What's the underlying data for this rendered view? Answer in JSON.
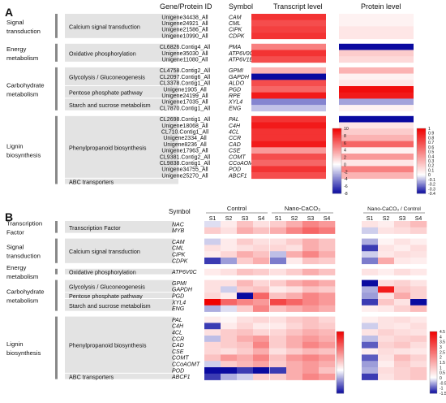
{
  "panel_a": {
    "letter": "A",
    "headers": {
      "gene": "Gene/Protein ID",
      "symbol": "Symbol",
      "transcript": "Transcript level",
      "protein": "Protein level"
    },
    "groups": [
      {
        "category": [
          "Signal",
          "transduction"
        ],
        "pathways": [
          {
            "name": "Calcium signal transduction",
            "rows": 4
          }
        ]
      },
      {
        "category": [
          "Energy",
          "metabolism"
        ],
        "pathways": [
          {
            "name": "Oxidative phosphorylation",
            "rows": 3
          }
        ]
      },
      {
        "category": [
          "Carbohydrate",
          "metabolism"
        ],
        "pathways": [
          {
            "name": "Glycolysis / Gluconeogenesis",
            "rows": 3
          },
          {
            "name": "Pentose phosphate pathway",
            "rows": 2
          },
          {
            "name": "Starch and sucrose metabolism",
            "rows": 2
          }
        ]
      },
      {
        "category": [
          "Lignin",
          "biosynthesis"
        ],
        "pathways": [
          {
            "name": "Phenylpropanoid biosynthesis",
            "rows": 10
          },
          {
            "name": "ABC transporters",
            "rows": 1
          }
        ]
      }
    ],
    "rows": [
      {
        "id": "Unigene34438_All",
        "symbol": "CAM"
      },
      {
        "id": "Unigene24921_All",
        "symbol": "CML"
      },
      {
        "id": "Unigene21586_All",
        "symbol": "CIPK"
      },
      {
        "id": "Unigene10990_All",
        "symbol": "CDPK"
      },
      {
        "id": "CL6826.Contig4_All",
        "symbol": "PMA"
      },
      {
        "id": "Unigene35030_All",
        "symbol": "ATP6V0C"
      },
      {
        "id": "Unigene11080_All",
        "symbol": "ATP6V1E"
      },
      {
        "id": "CL4758.Contig2_All",
        "symbol": "GPMI"
      },
      {
        "id": "CL2097.Contig6_All",
        "symbol": "GAPDH"
      },
      {
        "id": "CL3378.Contig1_All",
        "symbol": "ALDO"
      },
      {
        "id": "Unigene1905_All",
        "symbol": "PGD"
      },
      {
        "id": "Unigene24199_All",
        "symbol": "RPE"
      },
      {
        "id": "Unigene17035_All",
        "symbol": "XYL4"
      },
      {
        "id": "CL7870.Contig1_All",
        "symbol": "ENG"
      },
      {
        "id": "CL2698.Contig1_All",
        "symbol": "PAL"
      },
      {
        "id": "Unigene18068_All",
        "symbol": "C4H"
      },
      {
        "id": "CL710.Contig1_All",
        "symbol": "4CL"
      },
      {
        "id": "Unigene2334_All",
        "symbol": "CCR"
      },
      {
        "id": "Unigene8236_All",
        "symbol": "CAD"
      },
      {
        "id": "Unigene17963_All",
        "symbol": "CSE"
      },
      {
        "id": "CL9381.Contig2_All",
        "symbol": "COMT"
      },
      {
        "id": "CL9838.Contig1_All",
        "symbol": "CCoAOMT"
      },
      {
        "id": "Unigene34755_All",
        "symbol": "POD"
      },
      {
        "id": "Unigene25270_All",
        "symbol": "ABCF1"
      }
    ]
  },
  "panel_b": {
    "letter": "B",
    "symbol_header": "Symbol",
    "block_titles": [
      "Control",
      "Nano-CaCO₃",
      "Nano-CaCO₃ / Control"
    ],
    "samples": [
      "S1",
      "S2",
      "S3",
      "S4"
    ],
    "groups": [
      {
        "category": [
          "Transcription",
          "Factor"
        ],
        "pathways": [
          {
            "name": "Transcription Factor",
            "rows": 2
          }
        ]
      },
      {
        "category": [
          "Signal",
          "transduction"
        ],
        "pathways": [
          {
            "name": "Calcium signal transduction",
            "rows": 4
          }
        ]
      },
      {
        "category": [
          "Energy",
          "metabolism"
        ],
        "pathways": [
          {
            "name": "Oxidative phosphorylation",
            "rows": 1
          }
        ]
      },
      {
        "category": [
          "Carbohydrate",
          "metabolism"
        ],
        "pathways": [
          {
            "name": "Glycolysis / Gluconeogenesis",
            "rows": 2
          },
          {
            "name": "Pentose phosphate pathway",
            "rows": 1
          },
          {
            "name": "Starch and sucrose metabolism",
            "rows": 2
          }
        ]
      },
      {
        "category": [
          "Lignin",
          "biosynthesis"
        ],
        "pathways": [
          {
            "name": "Phenylpropanoid biosynthesis",
            "rows": 9
          },
          {
            "name": "ABC transporters",
            "rows": 1
          }
        ]
      }
    ],
    "symbols": [
      "NAC",
      "MYB",
      "CAM",
      "CML",
      "CIPK",
      "CDPK",
      "ATP6V0C",
      "GPMI",
      "GAPDH",
      "PGD",
      "XYL4",
      "ENG",
      "PAL",
      "C4H",
      "4CL",
      "CCR",
      "CAD",
      "CSE",
      "COMT",
      "CCoAOMT",
      "POD",
      "ABCF1"
    ]
  },
  "colors": {
    "blue": "#0a0aa0",
    "white": "#ffffff",
    "red": "#f00000"
  },
  "chart_data": [
    {
      "type": "heatmap",
      "title": "Transcript level",
      "rows": [
        "CAM",
        "CML",
        "CIPK",
        "CDPK",
        "PMA",
        "ATP6V0C",
        "ATP6V1E",
        "GPMI",
        "GAPDH",
        "ALDO",
        "PGD",
        "RPE",
        "XYL4",
        "ENG",
        "PAL",
        "C4H",
        "4CL",
        "CCR",
        "CAD",
        "CSE",
        "COMT",
        "CCoAOMT",
        "POD",
        "ABCF1"
      ],
      "values": [
        8,
        7,
        7.5,
        8,
        5,
        8,
        7,
        3,
        -8,
        7,
        6,
        9,
        -4,
        -2,
        8,
        9,
        8,
        8,
        9,
        4,
        7,
        6,
        8,
        7
      ],
      "colorbar": {
        "ticks": [
          10,
          8,
          6,
          4,
          2,
          0,
          -2,
          -4,
          -6,
          -8
        ],
        "min": -8,
        "max": 10
      }
    },
    {
      "type": "heatmap",
      "title": "Protein level",
      "rows": [
        "CAM",
        "CML",
        "CIPK",
        "CDPK",
        "PMA",
        "ATP6V0C",
        "ATP6V1E",
        "GPMI",
        "GAPDH",
        "ALDO",
        "PGD",
        "RPE",
        "XYL4",
        "ENG",
        "PAL",
        "C4H",
        "4CL",
        "CCR",
        "CAD",
        "CSE",
        "COMT",
        "CCoAOMT",
        "POD",
        "ABCF1"
      ],
      "values": [
        0.05,
        0.05,
        0.1,
        0.1,
        -0.4,
        0.2,
        0.15,
        0.3,
        0.05,
        0.1,
        0.95,
        0.9,
        -0.15,
        0.05,
        -0.4,
        0.1,
        0.2,
        0.3,
        0.6,
        0.05,
        0.4,
        0.1,
        0.5,
        0.3
      ],
      "colorbar": {
        "ticks": [
          1.0,
          0.9,
          0.8,
          0.7,
          0.6,
          0.5,
          0.4,
          0.3,
          0.2,
          0.1,
          0,
          -0.1,
          -0.2,
          -0.3,
          -0.4
        ],
        "min": -0.4,
        "max": 1.0
      }
    },
    {
      "type": "heatmap",
      "title": "Control",
      "columns": [
        "S1",
        "S2",
        "S3",
        "S4"
      ],
      "rows": [
        "NAC",
        "MYB",
        "CAM",
        "CML",
        "CIPK",
        "CDPK",
        "ATP6V0C",
        "GPMI",
        "GAPDH",
        "PGD",
        "XYL4",
        "ENG",
        "PAL",
        "C4H",
        "4CL",
        "CCR",
        "CAD",
        "CSE",
        "COMT",
        "CCoAOMT",
        "POD",
        "ABCF1"
      ],
      "values": [
        [
          -0.2,
          0.2,
          0.6,
          0.3
        ],
        [
          0.5,
          0.3,
          0.8,
          0.6
        ],
        [
          -0.3,
          0.2,
          0.5,
          0.3
        ],
        [
          0.3,
          0.2,
          0.3,
          0.4
        ],
        [
          0.2,
          0.4,
          0.8,
          0.6
        ],
        [
          -1.2,
          -0.6,
          0.5,
          0.8
        ],
        [
          0.2,
          0.3,
          0.6,
          0.5
        ],
        [
          0.3,
          0.3,
          0.7,
          0.4
        ],
        [
          0.3,
          -0.3,
          0.5,
          0.6
        ],
        [
          0.4,
          0.2,
          -1.5,
          1.5
        ],
        [
          2.5,
          1.5,
          1.2,
          1.0
        ],
        [
          -0.5,
          -0.2,
          0.5,
          1.2
        ],
        [
          0.2,
          0.1,
          0.3,
          0.4
        ],
        [
          -1.2,
          0.2,
          0.4,
          0.2
        ],
        [
          0.3,
          0.5,
          0.6,
          0.4
        ],
        [
          -0.4,
          0.5,
          0.8,
          1.0
        ],
        [
          0.4,
          0.5,
          0.6,
          1.2
        ],
        [
          0.4,
          0.3,
          0.5,
          0.8
        ],
        [
          0.6,
          1.0,
          0.8,
          1.2
        ],
        [
          -0.3,
          0.5,
          0.7,
          0.9
        ],
        [
          -1.5,
          -1.5,
          -1.2,
          -1.5
        ],
        [
          -1.2,
          -0.5,
          -0.3,
          0.5
        ]
      ]
    },
    {
      "type": "heatmap",
      "title": "Nano-CaCO₃",
      "columns": [
        "S1",
        "S2",
        "S3",
        "S4"
      ],
      "rows": [
        "NAC",
        "MYB",
        "CAM",
        "CML",
        "CIPK",
        "CDPK",
        "ATP6V0C",
        "GPMI",
        "GAPDH",
        "PGD",
        "XYL4",
        "ENG",
        "PAL",
        "C4H",
        "4CL",
        "CCR",
        "CAD",
        "CSE",
        "COMT",
        "CCoAOMT",
        "POD",
        "ABCF1"
      ],
      "values": [
        [
          0.5,
          0.8,
          1.2,
          1.0
        ],
        [
          0.8,
          1.2,
          1.5,
          1.3
        ],
        [
          0.3,
          0.5,
          0.8,
          0.6
        ],
        [
          0.4,
          0.3,
          0.8,
          0.6
        ],
        [
          -0.4,
          0.8,
          1.2,
          0.8
        ],
        [
          -0.8,
          0.2,
          0.6,
          0.5
        ],
        [
          0.3,
          0.5,
          0.8,
          0.6
        ],
        [
          0.5,
          0.8,
          1.0,
          0.8
        ],
        [
          0.2,
          0.3,
          0.6,
          0.5
        ],
        [
          0.6,
          0.8,
          1.2,
          1.0
        ],
        [
          1.8,
          1.5,
          1.2,
          1.0
        ],
        [
          0.6,
          0.8,
          1.0,
          0.8
        ],
        [
          0.3,
          0.5,
          0.6,
          0.4
        ],
        [
          0.2,
          0.4,
          0.6,
          0.5
        ],
        [
          0.4,
          0.6,
          0.8,
          0.7
        ],
        [
          0.5,
          0.8,
          1.0,
          0.8
        ],
        [
          0.5,
          0.8,
          1.2,
          1.0
        ],
        [
          0.3,
          0.5,
          0.7,
          0.6
        ],
        [
          0.6,
          1.0,
          1.2,
          1.0
        ],
        [
          0.5,
          0.8,
          1.0,
          0.8
        ],
        [
          -1.2,
          0.8,
          1.0,
          0.6
        ],
        [
          0.5,
          0.8,
          1.2,
          1.0
        ]
      ]
    },
    {
      "type": "heatmap",
      "title": "Nano-CaCO₃ / Control",
      "columns": [
        "S1",
        "S2",
        "S3",
        "S4"
      ],
      "rows": [
        "NAC",
        "MYB",
        "CAM",
        "CML",
        "CIPK",
        "CDPK",
        "ATP6V0C",
        "GPMI",
        "GAPDH",
        "PGD",
        "XYL4",
        "ENG",
        "PAL",
        "C4H",
        "4CL",
        "CCR",
        "CAD",
        "CSE",
        "COMT",
        "CCoAOMT",
        "POD",
        "ABCF1"
      ],
      "values": [
        [
          0.5,
          0.3,
          0.8,
          1.2
        ],
        [
          -0.3,
          0.5,
          0.6,
          0.8
        ],
        [
          -0.5,
          0.2,
          0.5,
          0.3
        ],
        [
          -1.2,
          0.5,
          0.3,
          0.6
        ],
        [
          -0.3,
          0.4,
          0.6,
          0.5
        ],
        [
          -0.8,
          1.5,
          0.4,
          0.3
        ],
        [
          0.5,
          0.3,
          0.6,
          0.4
        ],
        [
          -1.5,
          0.6,
          0.8,
          0.5
        ],
        [
          -0.5,
          4.0,
          1.0,
          0.8
        ],
        [
          -0.6,
          0.5,
          1.5,
          0.8
        ],
        [
          -1.2,
          1.0,
          0.5,
          -1.5
        ],
        [
          0.3,
          0.4,
          0.8,
          1.2
        ],
        [
          0.3,
          0.5,
          0.6,
          0.4
        ],
        [
          -0.3,
          0.5,
          0.4,
          0.6
        ],
        [
          0.5,
          0.8,
          0.6,
          0.5
        ],
        [
          -0.4,
          0.6,
          0.8,
          0.9
        ],
        [
          -1.0,
          0.8,
          1.0,
          0.6
        ],
        [
          0.3,
          0.6,
          0.5,
          0.4
        ],
        [
          -1.0,
          0.5,
          1.2,
          0.8
        ],
        [
          -0.6,
          0.3,
          0.9,
          0.6
        ],
        [
          -0.5,
          0.6,
          0.8,
          1.0
        ],
        [
          -1.2,
          0.5,
          0.8,
          1.0
        ]
      ],
      "colorbar": {
        "ticks": [
          4.5,
          4.0,
          3.5,
          3.0,
          2.5,
          2.0,
          1.5,
          1.0,
          0.5,
          0,
          -0.5,
          -1.0,
          -1.5
        ],
        "min": -1.5,
        "max": 4.5
      }
    }
  ]
}
